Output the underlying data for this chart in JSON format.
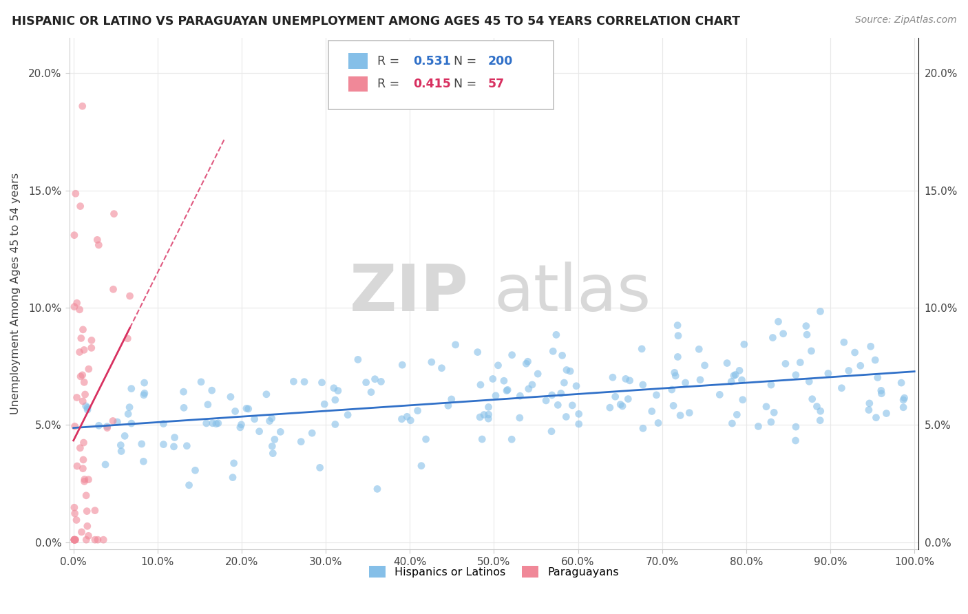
{
  "title": "HISPANIC OR LATINO VS PARAGUAYAN UNEMPLOYMENT AMONG AGES 45 TO 54 YEARS CORRELATION CHART",
  "source": "Source: ZipAtlas.com",
  "xlabel_ticks": [
    "0.0%",
    "10.0%",
    "20.0%",
    "30.0%",
    "40.0%",
    "50.0%",
    "60.0%",
    "70.0%",
    "80.0%",
    "90.0%",
    "100.0%"
  ],
  "ylabel": "Unemployment Among Ages 45 to 54 years",
  "ylabel_ticks": [
    "0.0%",
    "5.0%",
    "10.0%",
    "15.0%",
    "20.0%"
  ],
  "xlim": [
    -0.005,
    1.005
  ],
  "ylim": [
    -0.003,
    0.215
  ],
  "r_hispanic": 0.531,
  "n_hispanic": 200,
  "r_paraguayan": 0.415,
  "n_paraguayan": 57,
  "hispanic_color": "#85bfe8",
  "paraguayan_color": "#f08898",
  "trend_hispanic_color": "#3070c8",
  "trend_paraguayan_color": "#d83060",
  "watermark_zip": "ZIP",
  "watermark_atlas": "atlas",
  "background_color": "#ffffff",
  "scatter_alpha": 0.6,
  "scatter_size": 60
}
